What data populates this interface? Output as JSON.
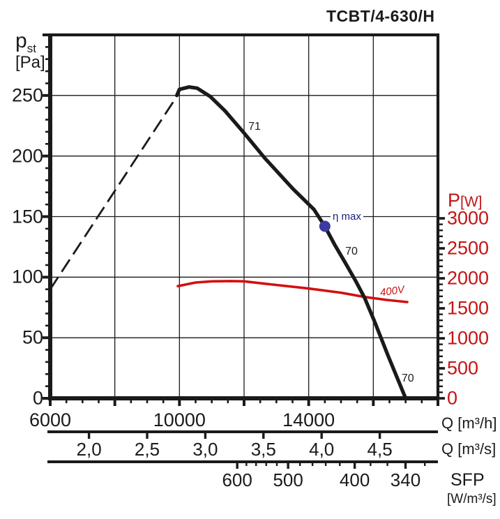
{
  "title": "TCBT/4-630/H",
  "y_left": {
    "symbol": "p",
    "subscript": "st",
    "unit": "[Pa]"
  },
  "y_right": {
    "symbol": "P",
    "unit": "[W]"
  },
  "x_units": {
    "per_hour": "Q [m³/h]",
    "per_second": "Q [m³/s]"
  },
  "sfp": {
    "label": "SFP",
    "unit": "[W/m³/s]"
  },
  "labels": {
    "eta_max": "η max",
    "voltage": "400V"
  },
  "colors": {
    "black": "#1a1a1a",
    "red_text": "#c41414",
    "red_curve": "#d40f0f",
    "blue_dot": "#3a3aa0",
    "blue_text": "#1b1b78"
  },
  "chart_data": {
    "type": "line",
    "title": "TCBT/4-630/H",
    "x_axis": {
      "label": "Q [m³/h]",
      "min": 6000,
      "max": 18000,
      "gridline_values": [
        8000,
        10000,
        12000,
        14000,
        16000
      ],
      "major_tick_step": 2000,
      "minor_tick_step": 500,
      "tick_labels": [
        6000,
        10000,
        14000
      ]
    },
    "y_axis_left": {
      "label": "p_st [Pa]",
      "min": 0,
      "max": 300,
      "gridline_values": [
        50,
        100,
        150,
        200,
        250
      ],
      "major_tick_step": 50,
      "minor_tick_step": 10,
      "tick_labels": [
        0,
        50,
        100,
        150,
        200,
        250
      ]
    },
    "y_axis_right": {
      "label": "P [W]",
      "min": 0,
      "max": 3000,
      "major_tick_step": 500,
      "minor_tick_step": 100,
      "tick_labels": [
        0,
        500,
        1000,
        1500,
        2000,
        2500,
        3000
      ]
    },
    "x_axis_secondary": {
      "label": "Q [m³/s]",
      "tick_values": [
        2.0,
        2.5,
        3.0,
        3.5,
        4.0,
        4.5
      ],
      "tick_labels": [
        "2,0",
        "2,5",
        "3,0",
        "3,5",
        "4,0",
        "4,5"
      ]
    },
    "sfp_axis": {
      "label": "SFP [W/m³/s]",
      "major_ticks": [
        600,
        500,
        400,
        340
      ],
      "minor_ticks": [
        580,
        560,
        540,
        520,
        480,
        460,
        440,
        420,
        380,
        360,
        320
      ]
    },
    "series": [
      {
        "name": "fan pressure curve",
        "units": [
          "m3/h",
          "Pa"
        ],
        "style": "solid black",
        "points": [
          [
            9920,
            250
          ],
          [
            10000,
            255
          ],
          [
            10300,
            257
          ],
          [
            10550,
            256
          ],
          [
            10960,
            249
          ],
          [
            11420,
            237
          ],
          [
            12000,
            219
          ],
          [
            12650,
            198
          ],
          [
            13510,
            173
          ],
          [
            14160,
            156
          ],
          [
            14500,
            142
          ],
          [
            14800,
            127
          ],
          [
            15130,
            112
          ],
          [
            15450,
            97
          ],
          [
            15730,
            83
          ],
          [
            16030,
            64
          ],
          [
            16460,
            35
          ],
          [
            17000,
            0
          ]
        ]
      },
      {
        "name": "fan curve unstable region",
        "units": [
          "m3/h",
          "Pa"
        ],
        "style": "dashed black",
        "points": [
          [
            6000,
            90
          ],
          [
            9840,
            246
          ]
        ]
      },
      {
        "name": "power input 400V",
        "units": [
          "m3/h",
          "W"
        ],
        "style": "solid red",
        "points": [
          [
            9950,
            1870
          ],
          [
            10500,
            1930
          ],
          [
            11000,
            1950
          ],
          [
            11600,
            1955
          ],
          [
            12000,
            1950
          ],
          [
            13000,
            1890
          ],
          [
            14000,
            1830
          ],
          [
            15000,
            1760
          ],
          [
            15730,
            1690
          ],
          [
            16420,
            1640
          ],
          [
            17050,
            1605
          ]
        ]
      }
    ],
    "eta_max_point": {
      "q_m3h": 14500,
      "p_pa": 142
    },
    "curve_labels": [
      {
        "text": "71",
        "q_m3h": 12390,
        "p_pa": 224
      },
      {
        "text": "70",
        "q_m3h": 15390,
        "p_pa": 121
      },
      {
        "text": "70",
        "q_m3h": 17135,
        "p_pa": 16
      }
    ],
    "legend": "off",
    "grid": "on"
  }
}
